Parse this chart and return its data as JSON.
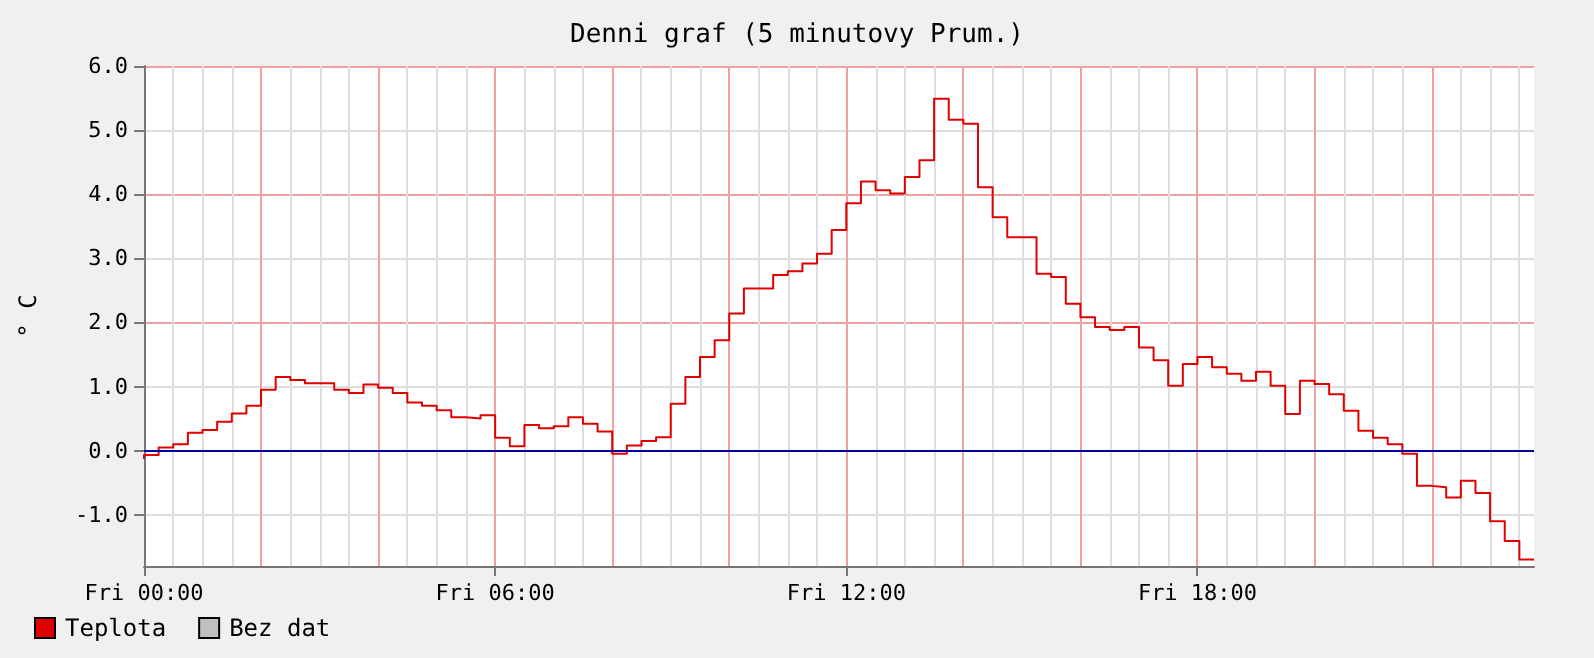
{
  "chart_data": {
    "type": "step",
    "title": "Denni graf (5 minutovy Prum.)",
    "ylabel": "° C",
    "categories": [
      "Fri 00:00",
      null,
      null,
      null,
      null,
      null,
      null,
      null,
      null,
      null,
      null,
      null,
      null,
      null,
      null,
      null,
      null,
      null,
      null,
      null,
      null,
      null,
      null,
      null,
      "Fri 06:00",
      null,
      null,
      null,
      null,
      null,
      null,
      null,
      null,
      null,
      null,
      null,
      null,
      null,
      null,
      null,
      null,
      null,
      null,
      null,
      null,
      null,
      null,
      null,
      "Fri 12:00",
      null,
      null,
      null,
      null,
      null,
      null,
      null,
      null,
      null,
      null,
      null,
      null,
      null,
      null,
      null,
      null,
      null,
      null,
      null,
      null,
      null,
      null,
      null,
      "Fri 18:00",
      null,
      null,
      null,
      null,
      null,
      null,
      null,
      null,
      null,
      null,
      null,
      null,
      null,
      null,
      null,
      null,
      null,
      null,
      null,
      null,
      null,
      null,
      null
    ],
    "series": [
      {
        "name": "Teplota",
        "color": "#e00000",
        "values": [
          -0.13,
          -0.07,
          0.05,
          0.1,
          0.28,
          0.32,
          0.45,
          0.58,
          0.7,
          0.95,
          1.15,
          1.1,
          1.05,
          1.05,
          0.95,
          0.9,
          1.03,
          0.98,
          0.9,
          0.75,
          0.7,
          0.63,
          0.52,
          0.5,
          0.55,
          0.2,
          0.07,
          0.4,
          0.35,
          0.38,
          0.52,
          0.42,
          0.3,
          -0.05,
          0.08,
          0.15,
          0.21,
          0.73,
          1.15,
          1.46,
          1.72,
          2.14,
          2.53,
          2.53,
          2.74,
          2.8,
          2.92,
          3.07,
          3.44,
          3.86,
          4.2,
          4.06,
          4.01,
          4.27,
          4.53,
          5.49,
          5.16,
          5.1,
          4.11,
          3.64,
          3.33,
          3.33,
          2.76,
          2.71,
          2.29,
          2.08,
          1.93,
          1.88,
          1.93,
          1.61,
          1.41,
          1.01,
          1.35,
          1.46,
          1.3,
          1.2,
          1.09,
          1.23,
          1.01,
          0.57,
          1.09,
          1.04,
          0.88,
          0.62,
          0.31,
          0.2,
          0.1,
          -0.05,
          -0.55,
          -0.57,
          -0.73,
          -0.47,
          -0.66,
          -1.1,
          -1.41,
          -1.7
        ]
      },
      {
        "name": "Bez dat",
        "color": "#c0c0c0",
        "values": [
          null,
          null,
          null,
          null,
          null,
          null,
          null,
          null,
          null,
          null,
          null,
          null,
          null,
          null,
          null,
          null,
          null,
          null,
          null,
          null,
          null,
          null,
          null,
          null,
          null,
          null,
          null,
          null,
          null,
          null,
          null,
          null,
          null,
          null,
          null,
          null,
          null,
          null,
          null,
          null,
          null,
          null,
          null,
          null,
          null,
          null,
          null,
          null,
          null,
          null,
          null,
          null,
          null,
          null,
          null,
          null,
          null,
          null,
          null,
          null,
          null,
          null,
          null,
          null,
          null,
          null,
          null,
          null,
          null,
          null,
          null,
          null,
          null,
          null,
          null,
          null,
          null,
          null,
          null,
          null,
          null,
          null,
          null,
          null,
          null,
          null,
          null,
          null,
          null,
          null,
          null,
          null,
          null,
          null,
          null,
          null
        ]
      }
    ],
    "ylim": [
      -1.8,
      6.0
    ],
    "yticks": [
      {
        "value": -1,
        "label": "-1.0"
      },
      {
        "value": 0,
        "label": "0.0"
      },
      {
        "value": 1,
        "label": "1.0"
      },
      {
        "value": 2,
        "label": "2.0"
      },
      {
        "value": 3,
        "label": "3.0"
      },
      {
        "value": 4,
        "label": "4.0"
      },
      {
        "value": 5,
        "label": "5.0"
      },
      {
        "value": 6,
        "label": "6.0"
      }
    ],
    "ref_lines": [
      {
        "axis": "y",
        "value": 0,
        "color": "#0000a0"
      }
    ],
    "grid": true,
    "legend": "bottom left",
    "marker": "none",
    "line_style": "solid"
  }
}
